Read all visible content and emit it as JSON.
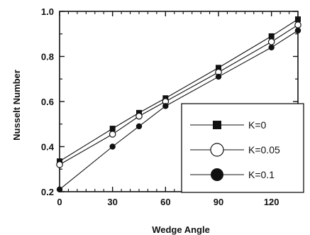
{
  "chart_data": {
    "type": "line",
    "title": "",
    "xlabel": "Wedge Angle",
    "ylabel": "Nusselt Number",
    "xlim": [
      0,
      135
    ],
    "ylim": [
      0.2,
      1.0
    ],
    "xticks": [
      "0",
      "30",
      "60",
      "90",
      "120"
    ],
    "yticks": [
      "0.2",
      "0.4",
      "0.6",
      "0.8",
      "1.0"
    ],
    "grid": false,
    "legend_position": "bottom-right",
    "series": [
      {
        "name": "K=0",
        "marker": "filled-square",
        "x": [
          0,
          30,
          45,
          60,
          90,
          120,
          135
        ],
        "y": [
          0.335,
          0.48,
          0.55,
          0.615,
          0.75,
          0.89,
          0.965
        ]
      },
      {
        "name": "K=0.05",
        "marker": "open-circle",
        "x": [
          0,
          30,
          45,
          60,
          90,
          120,
          135
        ],
        "y": [
          0.32,
          0.455,
          0.535,
          0.6,
          0.73,
          0.865,
          0.94
        ]
      },
      {
        "name": "K=0.1",
        "marker": "filled-circle",
        "x": [
          0,
          30,
          45,
          60,
          90,
          120,
          135
        ],
        "y": [
          0.21,
          0.4,
          0.49,
          0.58,
          0.71,
          0.84,
          0.915
        ]
      }
    ]
  }
}
